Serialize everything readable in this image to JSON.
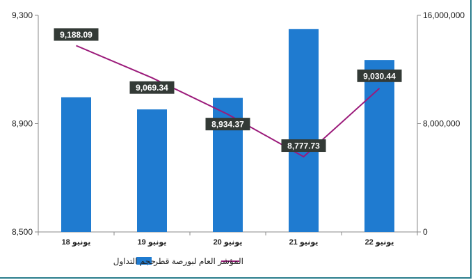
{
  "chart_data": {
    "type": "bar+line",
    "categories": [
      "يونيو 18",
      "يونيو 19",
      "يونيو 20",
      "يونيو 21",
      "يونيو 22"
    ],
    "series": [
      {
        "name": "حجم التداول",
        "type": "bar",
        "axis": "right",
        "color": "#1f7bd0",
        "values": [
          9950000,
          9050000,
          9900000,
          14980000,
          12700000
        ]
      },
      {
        "name": "المؤشر العام لبورصة قطر",
        "type": "line",
        "axis": "left",
        "color": "#9b1a7a",
        "values": [
          9188.09,
          9069.34,
          8934.37,
          8777.73,
          9030.44
        ],
        "labels": [
          "9,188.09",
          "9,069.34",
          "8,934.37",
          "8,777.73",
          "9,030.44"
        ]
      }
    ],
    "y_left": {
      "min": 8500,
      "max": 9300,
      "ticks": [
        "8,500",
        "8,900",
        "9,300"
      ]
    },
    "y_right": {
      "min": 0,
      "max": 16000000,
      "ticks": [
        "0",
        "8,000,000",
        "16,000,000"
      ]
    },
    "grid": false,
    "legend_position": "bottom"
  }
}
